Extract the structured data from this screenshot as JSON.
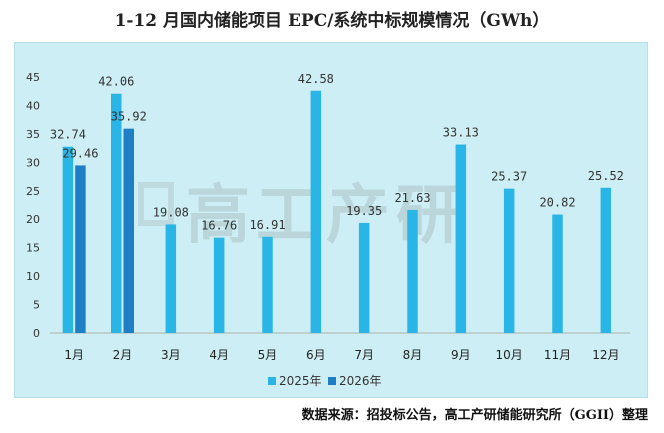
{
  "title": "1-12 月国内储能项目 EPC/系统中标规模情况（GWh）",
  "source": "数据来源：招投标公告，高工产研储能研究所（GGII）整理",
  "watermark": "高工产研",
  "colors": {
    "series_2025": "#29b5e6",
    "series_2026": "#1f7fc6",
    "plot_bg": "#cdeef4"
  },
  "chart_data": {
    "type": "bar",
    "title": "1-12 月国内储能项目 EPC/系统中标规模情况（GWh）",
    "categories": [
      "1月",
      "2月",
      "3月",
      "4月",
      "5月",
      "6月",
      "7月",
      "8月",
      "9月",
      "10月",
      "11月",
      "12月"
    ],
    "series": [
      {
        "name": "2025年",
        "values": [
          32.74,
          42.06,
          19.08,
          16.76,
          16.91,
          42.58,
          19.35,
          21.63,
          33.13,
          25.37,
          20.82,
          25.52
        ]
      },
      {
        "name": "2026年",
        "values": [
          29.46,
          35.92,
          null,
          null,
          null,
          null,
          null,
          null,
          null,
          null,
          null,
          null
        ]
      }
    ],
    "ylim": [
      0,
      45
    ],
    "yticks": [
      0,
      5,
      10,
      15,
      20,
      25,
      30,
      35,
      40,
      45
    ],
    "grid": false,
    "legend": "bottom-center"
  }
}
